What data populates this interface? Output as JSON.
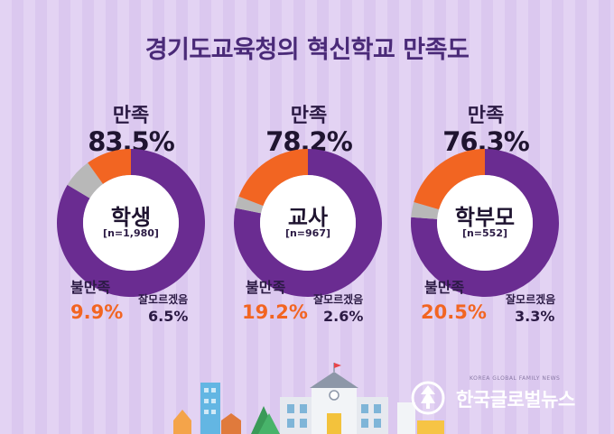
{
  "title": "경기도교육청의 혁신학교 만족도",
  "colors": {
    "satisfied": "#6a2c91",
    "dissatisfied": "#f26522",
    "unknown": "#b8b8b8",
    "inner": "#ffffff"
  },
  "chart_data": {
    "type": "pie",
    "title": "경기도교육청의 혁신학교 만족도",
    "categories_labels": {
      "satisfied": "만족",
      "dissatisfied": "불만족",
      "unknown": "잘모르겠음"
    },
    "charts": [
      {
        "name": "학생",
        "n": "[n=1,980]",
        "satisfied": 83.5,
        "satisfied_label": "83.5%",
        "dissatisfied": 9.9,
        "dissatisfied_label": "9.9%",
        "unknown": 6.5,
        "unknown_label": "6.5%"
      },
      {
        "name": "교사",
        "n": "[n=967]",
        "satisfied": 78.2,
        "satisfied_label": "78.2%",
        "dissatisfied": 19.2,
        "dissatisfied_label": "19.2%",
        "unknown": 2.6,
        "unknown_label": "2.6%"
      },
      {
        "name": "학부모",
        "n": "[n=552]",
        "satisfied": 76.3,
        "satisfied_label": "76.3%",
        "dissatisfied": 20.5,
        "dissatisfied_label": "20.5%",
        "unknown": 3.3,
        "unknown_label": "3.3%"
      }
    ]
  },
  "logo": {
    "small": "KOREA GLOBAL FAMILY NEWS",
    "text": "한국글로벌뉴스"
  }
}
